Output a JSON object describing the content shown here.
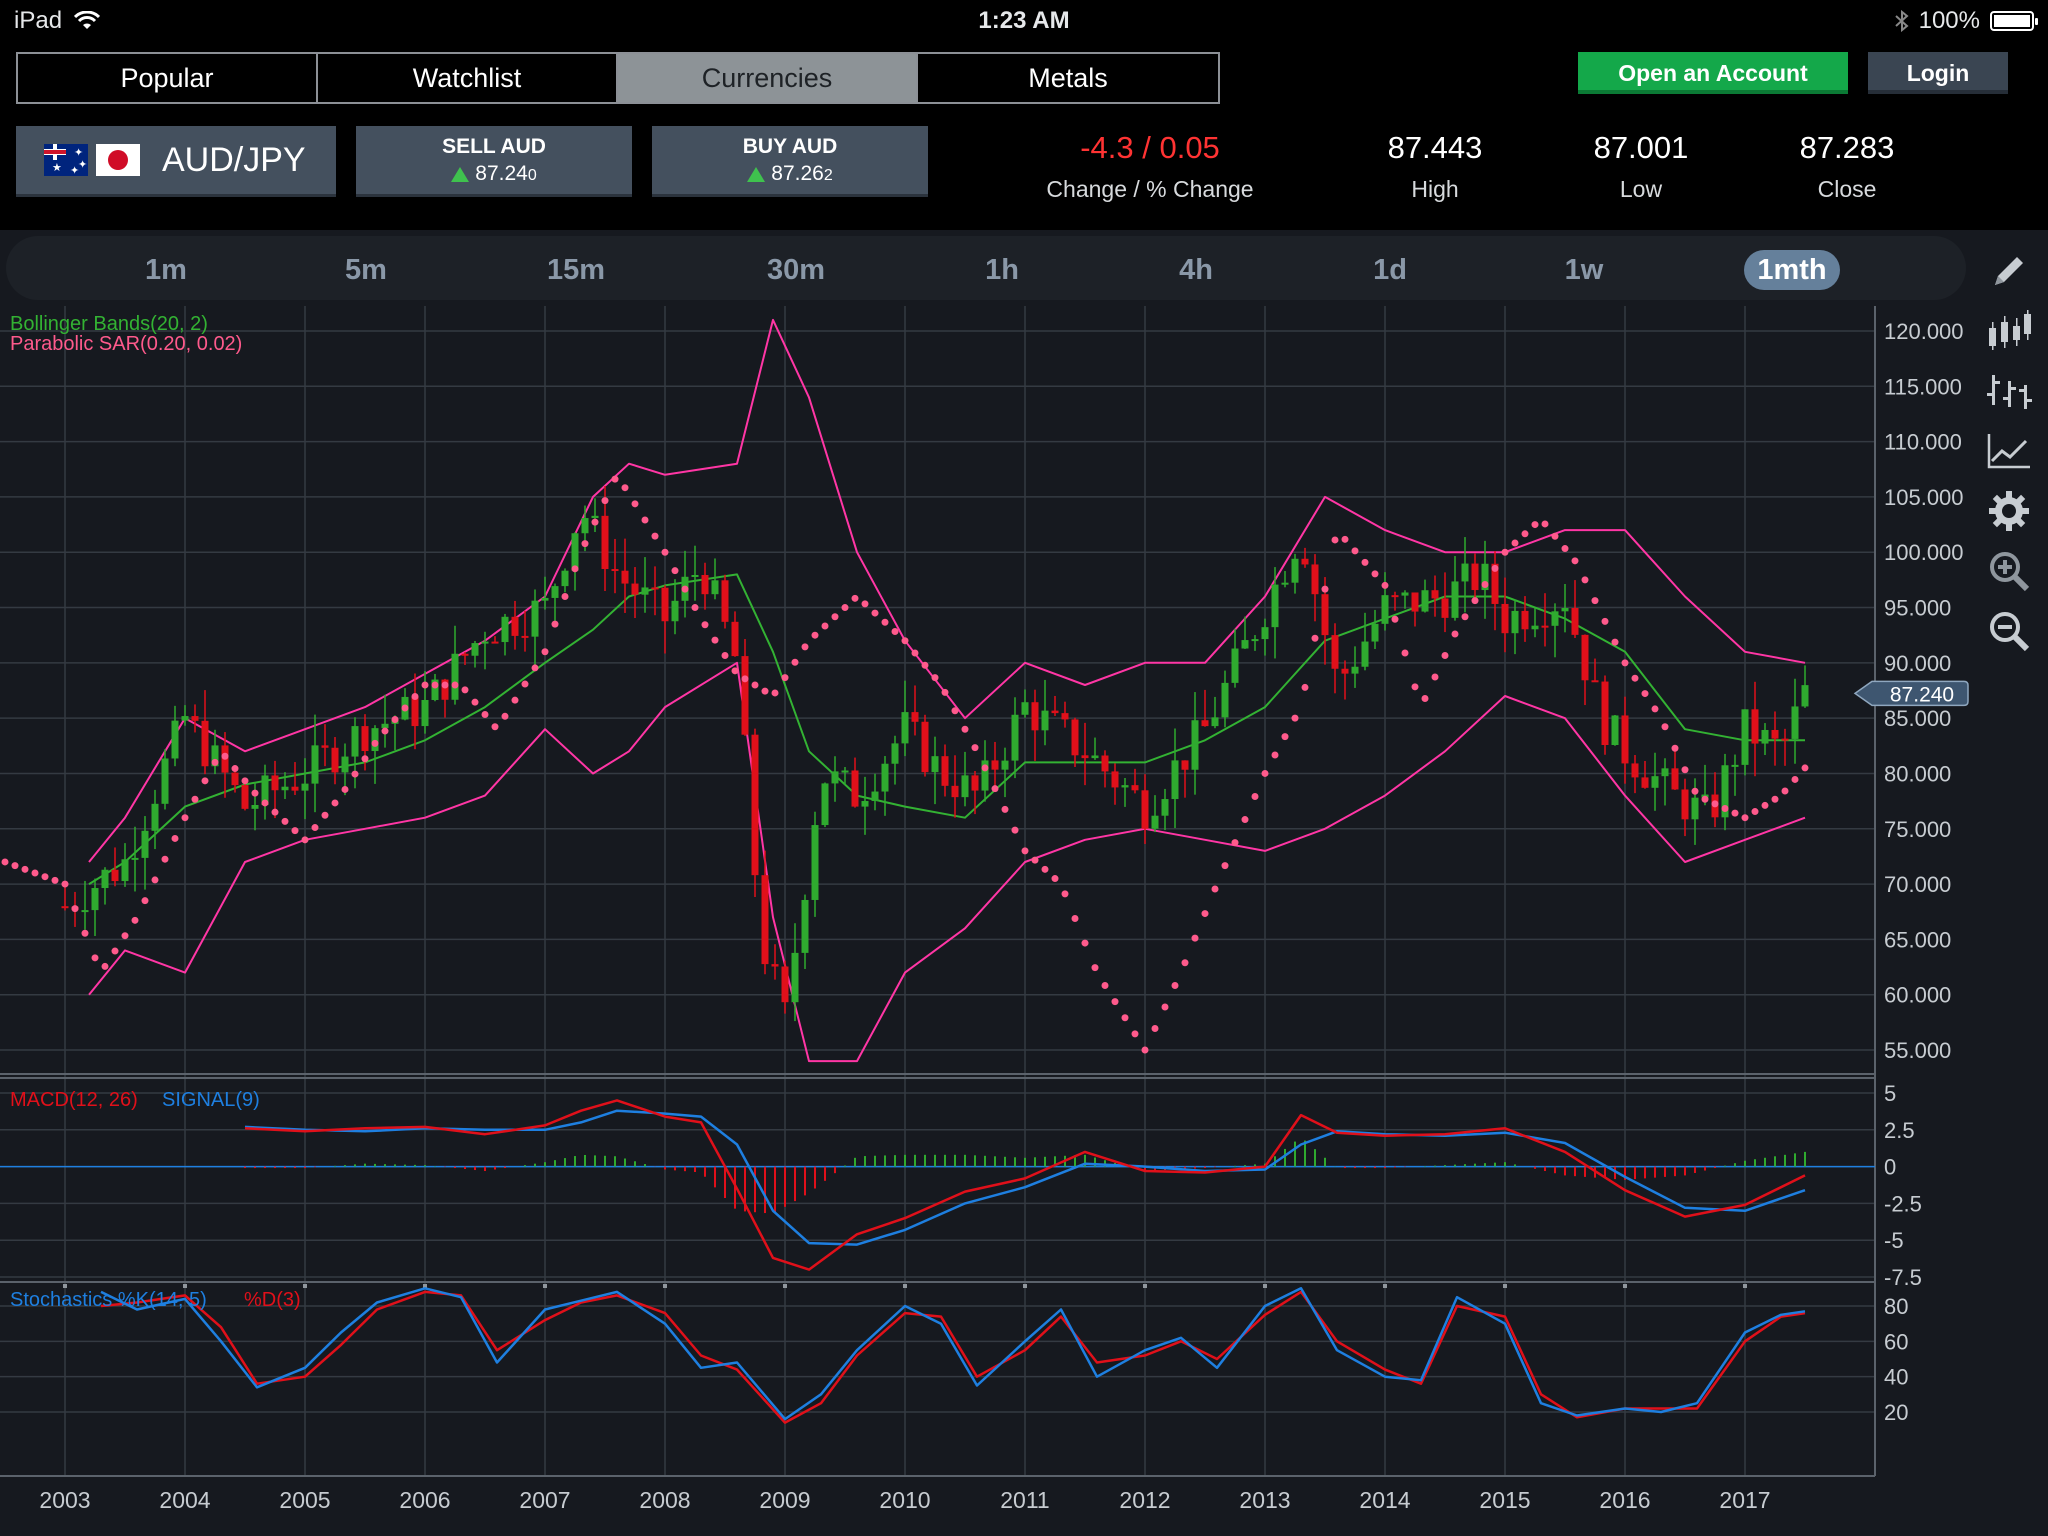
{
  "status_bar": {
    "device": "iPad",
    "time": "1:23 AM",
    "battery": "100%"
  },
  "nav": {
    "tabs": [
      {
        "label": "Popular",
        "active": false
      },
      {
        "label": "Watchlist",
        "active": false
      },
      {
        "label": "Currencies",
        "active": true
      },
      {
        "label": "Metals",
        "active": false
      }
    ],
    "open_account": "Open an Account",
    "login": "Login"
  },
  "quote": {
    "pair": "AUD/JPY",
    "sell": {
      "label": "SELL AUD",
      "price_main": "87.24",
      "price_pip": "0"
    },
    "buy": {
      "label": "BUY AUD",
      "price_main": "87.26",
      "price_pip": "2"
    },
    "change": {
      "value": "-4.3 / 0.05",
      "label": "Change / % Change"
    },
    "high": {
      "value": "87.443",
      "label": "High"
    },
    "low": {
      "value": "87.001",
      "label": "Low"
    },
    "close": {
      "value": "87.283",
      "label": "Close"
    }
  },
  "timeframes": [
    {
      "label": "1m",
      "active": false
    },
    {
      "label": "5m",
      "active": false
    },
    {
      "label": "15m",
      "active": false
    },
    {
      "label": "30m",
      "active": false
    },
    {
      "label": "1h",
      "active": false
    },
    {
      "label": "4h",
      "active": false
    },
    {
      "label": "1d",
      "active": false
    },
    {
      "label": "1w",
      "active": false
    },
    {
      "label": "1mth",
      "active": true
    }
  ],
  "tools": [
    "pencil-icon",
    "candlestick-icon",
    "ohlc-bars-icon",
    "line-chart-icon",
    "gear-icon",
    "zoom-in-icon",
    "zoom-out-icon"
  ],
  "colors": {
    "up": "#2faa2f",
    "down": "#e0101a",
    "bollinger_mid": "#33b233",
    "bollinger_band": "#ff36a5",
    "sar": "#ff5a8c",
    "macd": "#e0101a",
    "signal": "#1e7fe0",
    "stoch_k": "#1e7fe0",
    "stoch_d": "#e0101a",
    "active_tab": "#8d9397",
    "open_account": "#14a84a"
  },
  "chart_data": [
    {
      "type": "candlestick",
      "title": "",
      "indicators": [
        "Bollinger Bands(20, 2)",
        "Parabolic SAR(0.20, 0.02)"
      ],
      "x_tick_labels": [
        "2003",
        "2004",
        "2005",
        "2006",
        "2007",
        "2008",
        "2009",
        "2010",
        "2011",
        "2012",
        "2013",
        "2014",
        "2015",
        "2016",
        "2017"
      ],
      "y_tick_labels": [
        "120.000",
        "115.000",
        "110.000",
        "105.000",
        "100.000",
        "95.000",
        "90.000",
        "85.000",
        "80.000",
        "75.000",
        "70.000",
        "65.000",
        "60.000",
        "55.000"
      ],
      "ylim": [
        55,
        120
      ],
      "current_price_label": "87.240",
      "current_price": 87.24,
      "close_series": {
        "x": [
          2003.0,
          2003.5,
          2004.0,
          2004.5,
          2005.0,
          2005.5,
          2006.0,
          2006.5,
          2007.0,
          2007.3,
          2007.6,
          2008.0,
          2008.3,
          2008.6,
          2008.8,
          2009.0,
          2009.3,
          2009.6,
          2010.0,
          2010.3,
          2010.6,
          2011.0,
          2011.5,
          2012.0,
          2012.5,
          2013.0,
          2013.3,
          2013.6,
          2014.0,
          2014.5,
          2014.8,
          2015.0,
          2015.5,
          2015.8,
          2016.0,
          2016.4,
          2016.7,
          2017.0,
          2017.3,
          2017.5
        ],
        "close": [
          68,
          72,
          85,
          77,
          80,
          84,
          86,
          93,
          95,
          104,
          98,
          94,
          99,
          90,
          65,
          58,
          80,
          78,
          84,
          80,
          78,
          86,
          82,
          77,
          84,
          95,
          102,
          88,
          95,
          96,
          98,
          94,
          96,
          85,
          82,
          78,
          76,
          84,
          82,
          87.24
        ]
      },
      "bollinger": {
        "x": [
          2003.2,
          2003.5,
          2004.0,
          2004.5,
          2005.0,
          2005.5,
          2006.0,
          2006.5,
          2007.0,
          2007.4,
          2007.7,
          2008.0,
          2008.6,
          2008.9,
          2009.2,
          2009.6,
          2010.0,
          2010.5,
          2011.0,
          2011.5,
          2012.0,
          2012.5,
          2013.0,
          2013.5,
          2014.0,
          2014.5,
          2015.0,
          2015.5,
          2016.0,
          2016.5,
          2017.0,
          2017.5
        ],
        "upper": [
          72,
          76,
          85,
          82,
          84,
          86,
          89,
          92,
          96,
          105,
          108,
          107,
          108,
          121,
          114,
          100,
          92,
          85,
          90,
          88,
          90,
          90,
          96,
          105,
          102,
          100,
          100,
          102,
          102,
          96,
          91,
          90
        ],
        "middle": [
          70,
          72,
          77,
          79,
          80,
          81,
          83,
          86,
          90,
          93,
          96,
          97,
          98,
          91,
          82,
          78,
          77,
          76,
          81,
          81,
          81,
          83,
          86,
          92,
          94,
          96,
          96,
          94,
          91,
          84,
          83,
          83
        ],
        "lower": [
          60,
          64,
          62,
          72,
          74,
          75,
          76,
          78,
          84,
          80,
          82,
          86,
          90,
          67,
          54,
          54,
          62,
          66,
          72,
          74,
          75,
          74,
          73,
          75,
          78,
          82,
          87,
          85,
          78,
          72,
          74,
          76
        ]
      },
      "parabolic_sar": {
        "x": [
          2002.5,
          2003.0,
          2003.3,
          2003.6,
          2004.0,
          2004.3,
          2004.6,
          2005.0,
          2005.3,
          2005.6,
          2006.0,
          2006.3,
          2006.6,
          2007.0,
          2007.3,
          2007.6,
          2008.0,
          2008.3,
          2008.6,
          2008.9,
          2009.2,
          2009.6,
          2010.0,
          2010.3,
          2010.6,
          2011.0,
          2011.3,
          2011.6,
          2012.0,
          2012.3,
          2012.6,
          2013.0,
          2013.3,
          2013.6,
          2014.0,
          2014.3,
          2014.6,
          2015.0,
          2015.3,
          2015.6,
          2016.0,
          2016.3,
          2016.6,
          2017.0,
          2017.3,
          2017.5
        ],
        "y": [
          72,
          70,
          62,
          67,
          76,
          82,
          78,
          74,
          78,
          83,
          88,
          88,
          84,
          91,
          100,
          107,
          100,
          94,
          89,
          87,
          92,
          96,
          92,
          88,
          82,
          73,
          70,
          62,
          55,
          62,
          70,
          80,
          86,
          102,
          97,
          86,
          93,
          100,
          103,
          99,
          90,
          85,
          78,
          76,
          78,
          80.5
        ]
      }
    },
    {
      "type": "line",
      "title": "",
      "indicator_label": "MACD(12, 26)",
      "signal_label": "SIGNAL(9)",
      "y_tick_labels": [
        "5",
        "2.5",
        "0",
        "-2.5",
        "-5",
        "-7.5"
      ],
      "ylim": [
        -7.5,
        5
      ],
      "x": [
        2004.5,
        2005.0,
        2005.5,
        2006.0,
        2006.5,
        2007.0,
        2007.3,
        2007.6,
        2008.0,
        2008.3,
        2008.6,
        2008.9,
        2009.2,
        2009.6,
        2010.0,
        2010.5,
        2011.0,
        2011.5,
        2012.0,
        2012.5,
        2013.0,
        2013.3,
        2013.6,
        2014.0,
        2014.5,
        2015.0,
        2015.5,
        2016.0,
        2016.5,
        2017.0,
        2017.5
      ],
      "series": [
        {
          "name": "MACD(12, 26)",
          "values": [
            2.6,
            2.4,
            2.6,
            2.7,
            2.2,
            2.8,
            3.8,
            4.5,
            3.4,
            3.0,
            -1.5,
            -6.2,
            -7.0,
            -4.6,
            -3.5,
            -1.7,
            -0.8,
            1.0,
            -0.3,
            -0.4,
            0.0,
            3.5,
            2.3,
            2.1,
            2.2,
            2.6,
            1.0,
            -1.6,
            -3.4,
            -2.6,
            -0.6
          ]
        },
        {
          "name": "SIGNAL(9)",
          "values": [
            2.7,
            2.5,
            2.4,
            2.6,
            2.5,
            2.5,
            3.0,
            3.8,
            3.6,
            3.4,
            1.5,
            -3.0,
            -5.2,
            -5.3,
            -4.3,
            -2.5,
            -1.4,
            0.2,
            0.0,
            -0.3,
            -0.2,
            1.5,
            2.4,
            2.2,
            2.1,
            2.3,
            1.6,
            -0.7,
            -2.8,
            -3.0,
            -1.6
          ]
        }
      ]
    },
    {
      "type": "line",
      "title": "",
      "indicator_label": "Stochastics %K(14, 5)",
      "d_label": "%D(3)",
      "y_tick_labels": [
        "80",
        "60",
        "40",
        "20"
      ],
      "ylim": [
        10,
        100
      ],
      "x": [
        2003.3,
        2003.6,
        2004.0,
        2004.3,
        2004.6,
        2005.0,
        2005.3,
        2005.6,
        2006.0,
        2006.3,
        2006.6,
        2007.0,
        2007.3,
        2007.6,
        2008.0,
        2008.3,
        2008.6,
        2009.0,
        2009.3,
        2009.6,
        2010.0,
        2010.3,
        2010.6,
        2011.0,
        2011.3,
        2011.6,
        2012.0,
        2012.3,
        2012.6,
        2013.0,
        2013.3,
        2013.6,
        2014.0,
        2014.3,
        2014.6,
        2015.0,
        2015.3,
        2015.6,
        2016.0,
        2016.3,
        2016.6,
        2017.0,
        2017.3,
        2017.5
      ],
      "series": [
        {
          "name": "%K(14, 5)",
          "values": [
            88,
            78,
            84,
            60,
            34,
            45,
            65,
            82,
            90,
            85,
            48,
            78,
            83,
            88,
            70,
            45,
            48,
            16,
            30,
            55,
            80,
            70,
            35,
            60,
            78,
            40,
            55,
            62,
            45,
            80,
            90,
            55,
            40,
            38,
            85,
            70,
            25,
            18,
            22,
            20,
            25,
            65,
            75,
            77
          ]
        },
        {
          "name": "%D(3)",
          "values": [
            80,
            82,
            86,
            68,
            36,
            40,
            58,
            78,
            88,
            86,
            55,
            72,
            82,
            86,
            76,
            52,
            44,
            14,
            25,
            52,
            76,
            74,
            40,
            55,
            74,
            48,
            52,
            60,
            50,
            75,
            88,
            60,
            44,
            36,
            80,
            74,
            30,
            17,
            22,
            22,
            22,
            60,
            74,
            76
          ]
        }
      ]
    }
  ]
}
